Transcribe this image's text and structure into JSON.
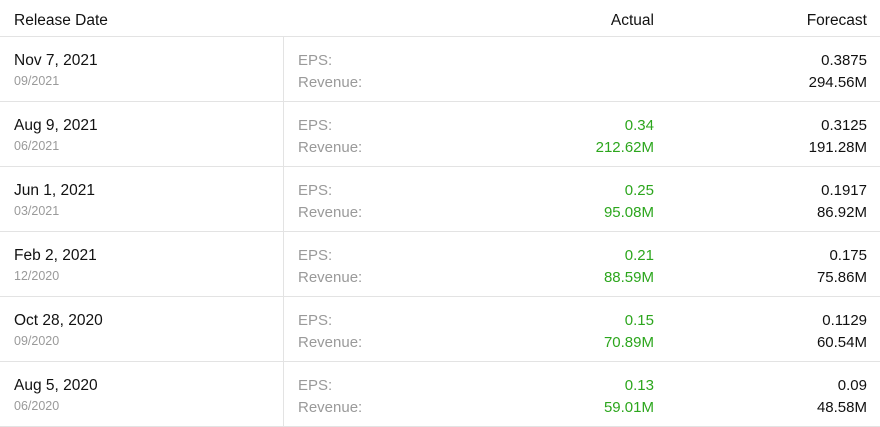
{
  "header": {
    "release_date": "Release Date",
    "actual": "Actual",
    "forecast": "Forecast"
  },
  "labels": {
    "eps": "EPS:",
    "revenue": "Revenue:"
  },
  "colors": {
    "actual_positive": "#2ca61d",
    "muted_text": "#9a9a9a",
    "divider": "#e3e3e3"
  },
  "rows": [
    {
      "date": "Nov 7, 2021",
      "period": "09/2021",
      "eps_actual": "",
      "rev_actual": "",
      "eps_forecast": "0.3875",
      "rev_forecast": "294.56M"
    },
    {
      "date": "Aug 9, 2021",
      "period": "06/2021",
      "eps_actual": "0.34",
      "rev_actual": "212.62M",
      "eps_forecast": "0.3125",
      "rev_forecast": "191.28M"
    },
    {
      "date": "Jun 1, 2021",
      "period": "03/2021",
      "eps_actual": "0.25",
      "rev_actual": "95.08M",
      "eps_forecast": "0.1917",
      "rev_forecast": "86.92M"
    },
    {
      "date": "Feb 2, 2021",
      "period": "12/2020",
      "eps_actual": "0.21",
      "rev_actual": "88.59M",
      "eps_forecast": "0.175",
      "rev_forecast": "75.86M"
    },
    {
      "date": "Oct 28, 2020",
      "period": "09/2020",
      "eps_actual": "0.15",
      "rev_actual": "70.89M",
      "eps_forecast": "0.1129",
      "rev_forecast": "60.54M"
    },
    {
      "date": "Aug 5, 2020",
      "period": "06/2020",
      "eps_actual": "0.13",
      "rev_actual": "59.01M",
      "eps_forecast": "0.09",
      "rev_forecast": "48.58M"
    }
  ]
}
